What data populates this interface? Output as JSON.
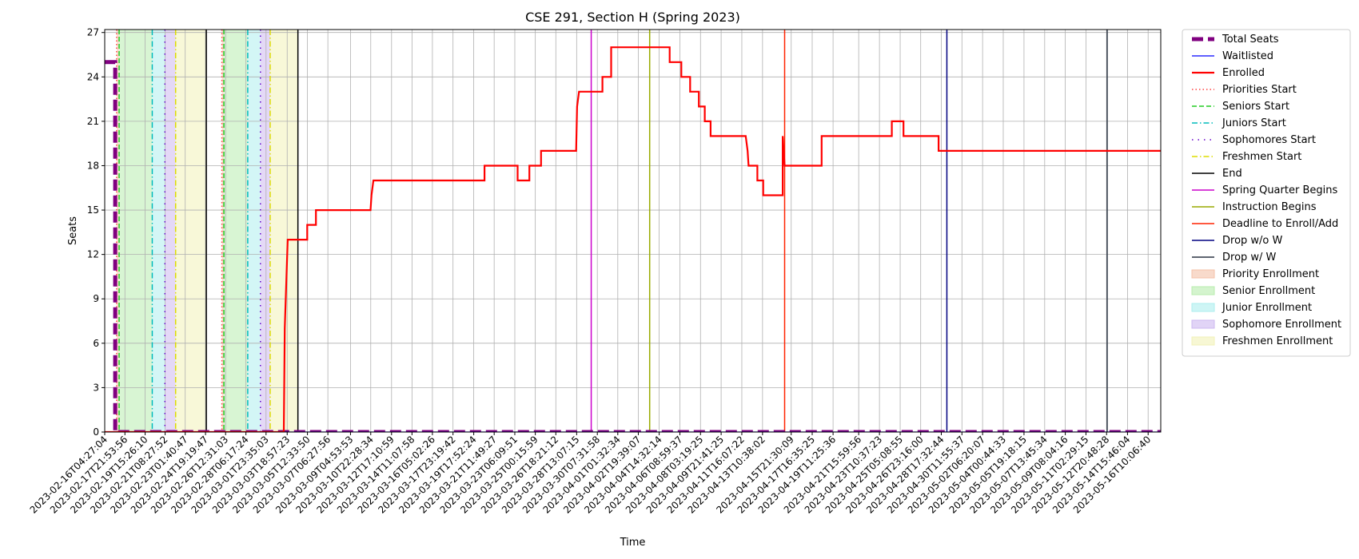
{
  "chart_data": {
    "type": "line",
    "title": "CSE 291, Section H (Spring 2023)",
    "xlabel": "Time",
    "ylabel": "Seats",
    "ylim": [
      0,
      27.2
    ],
    "yticks": [
      0,
      3,
      6,
      9,
      12,
      15,
      18,
      21,
      24,
      27
    ],
    "xlim": [
      "2023-02-16T04:27:04",
      "2023-05-17T12:00:00"
    ],
    "xticks": [
      "2023-02-16T04:27:04",
      "2023-02-17T21:53:56",
      "2023-02-19T15:26:10",
      "2023-02-21T08:27:52",
      "2023-02-23T01:40:47",
      "2023-02-24T19:19:47",
      "2023-02-26T12:31:03",
      "2023-02-28T06:17:24",
      "2023-03-01T23:35:03",
      "2023-03-03T18:57:23",
      "2023-03-05T12:33:50",
      "2023-03-07T06:27:56",
      "2023-03-09T04:53:53",
      "2023-03-10T22:28:34",
      "2023-03-12T17:10:59",
      "2023-03-14T11:07:58",
      "2023-03-16T05:02:26",
      "2023-03-17T23:19:42",
      "2023-03-19T17:52:24",
      "2023-03-21T11:49:27",
      "2023-03-23T06:09:51",
      "2023-03-25T00:15:59",
      "2023-03-26T18:21:12",
      "2023-03-28T13:07:15",
      "2023-03-30T07:31:58",
      "2023-04-01T01:32:34",
      "2023-04-02T19:39:07",
      "2023-04-04T14:32:14",
      "2023-04-06T08:59:37",
      "2023-04-08T03:19:25",
      "2023-04-09T21:41:25",
      "2023-04-11T16:07:22",
      "2023-04-13T10:38:02",
      "2023-04-15T21:30:09",
      "2023-04-17T16:35:25",
      "2023-04-19T11:25:36",
      "2023-04-21T15:59:56",
      "2023-04-23T10:37:23",
      "2023-04-25T05:08:55",
      "2023-04-26T23:16:00",
      "2023-04-28T17:32:44",
      "2023-04-30T11:55:37",
      "2023-05-02T06:20:07",
      "2023-05-04T00:44:33",
      "2023-05-05T19:18:15",
      "2023-05-07T13:45:34",
      "2023-05-09T08:04:16",
      "2023-05-11T02:29:15",
      "2023-05-12T20:48:28",
      "2023-05-14T15:46:04",
      "2023-05-16T10:06:40"
    ],
    "grid": true,
    "legend_position": "outside-right",
    "series": [
      {
        "name": "Total Seats",
        "style": "dashed",
        "color": "#800080",
        "points": [
          [
            "2023-02-16T04:27:04",
            25
          ],
          [
            "2023-02-17T02:00:00",
            25
          ],
          [
            "2023-02-17T02:00:00",
            0
          ],
          [
            "2023-05-17T12:00:00",
            0
          ]
        ]
      },
      {
        "name": "Waitlisted",
        "style": "solid",
        "color": "#0000ff",
        "points": [
          [
            "2023-02-16T04:27:04",
            0
          ],
          [
            "2023-05-17T12:00:00",
            0
          ]
        ]
      },
      {
        "name": "Enrolled",
        "style": "solid",
        "color": "#ff0000",
        "points": [
          [
            "2023-02-16T04:27:04",
            0
          ],
          [
            "2023-03-03T12:00:00",
            0
          ],
          [
            "2023-03-03T14:00:00",
            7
          ],
          [
            "2023-03-03T20:00:00",
            13
          ],
          [
            "2023-03-05T12:00:00",
            13
          ],
          [
            "2023-03-05T12:00:00",
            14
          ],
          [
            "2023-03-06T06:00:00",
            14
          ],
          [
            "2023-03-06T06:00:00",
            15
          ],
          [
            "2023-03-10T22:00:00",
            15
          ],
          [
            "2023-03-11T00:00:00",
            16
          ],
          [
            "2023-03-11T04:00:00",
            17
          ],
          [
            "2023-03-20T16:00:00",
            17
          ],
          [
            "2023-03-20T16:00:00",
            18
          ],
          [
            "2023-03-23T12:00:00",
            18
          ],
          [
            "2023-03-23T12:00:00",
            17
          ],
          [
            "2023-03-24T12:00:00",
            17
          ],
          [
            "2023-03-24T12:00:00",
            18
          ],
          [
            "2023-03-25T12:00:00",
            18
          ],
          [
            "2023-03-25T12:00:00",
            19
          ],
          [
            "2023-03-28T12:00:00",
            19
          ],
          [
            "2023-03-28T14:00:00",
            22
          ],
          [
            "2023-03-28T18:00:00",
            23
          ],
          [
            "2023-03-30T18:00:00",
            23
          ],
          [
            "2023-03-30T18:00:00",
            24
          ],
          [
            "2023-03-31T12:00:00",
            24
          ],
          [
            "2023-03-31T12:00:00",
            26
          ],
          [
            "2023-04-05T12:00:00",
            26
          ],
          [
            "2023-04-05T12:00:00",
            25
          ],
          [
            "2023-04-06T12:00:00",
            25
          ],
          [
            "2023-04-06T12:00:00",
            24
          ],
          [
            "2023-04-07T06:00:00",
            24
          ],
          [
            "2023-04-07T06:00:00",
            23
          ],
          [
            "2023-04-08T00:00:00",
            23
          ],
          [
            "2023-04-08T00:00:00",
            22
          ],
          [
            "2023-04-08T12:00:00",
            22
          ],
          [
            "2023-04-08T12:00:00",
            21
          ],
          [
            "2023-04-09T00:00:00",
            21
          ],
          [
            "2023-04-09T00:00:00",
            20
          ],
          [
            "2023-04-12T00:00:00",
            20
          ],
          [
            "2023-04-12T04:00:00",
            19
          ],
          [
            "2023-04-12T06:00:00",
            18
          ],
          [
            "2023-04-13T00:00:00",
            18
          ],
          [
            "2023-04-13T00:00:00",
            17
          ],
          [
            "2023-04-13T12:00:00",
            17
          ],
          [
            "2023-04-13T12:00:00",
            16
          ],
          [
            "2023-04-15T04:00:00",
            16
          ],
          [
            "2023-04-15T04:00:00",
            20
          ],
          [
            "2023-04-15T08:00:00",
            18
          ],
          [
            "2023-04-18T12:00:00",
            18
          ],
          [
            "2023-04-18T12:00:00",
            20
          ],
          [
            "2023-04-24T12:00:00",
            20
          ],
          [
            "2023-04-24T12:00:00",
            21
          ],
          [
            "2023-04-25T12:00:00",
            21
          ],
          [
            "2023-04-25T12:00:00",
            20
          ],
          [
            "2023-04-28T12:00:00",
            20
          ],
          [
            "2023-04-28T12:00:00",
            19
          ],
          [
            "2023-05-17T12:00:00",
            19
          ]
        ]
      }
    ],
    "vlines": [
      {
        "name": "Priorities Start",
        "style": "dotted",
        "color": "#ff4040",
        "x": [
          "2023-02-17T05:00:00",
          "2023-02-26T05:00:00"
        ]
      },
      {
        "name": "Seniors Start",
        "style": "dashed",
        "color": "#22cc22",
        "x": [
          "2023-02-17T10:00:00",
          "2023-02-26T09:00:00"
        ]
      },
      {
        "name": "Juniors Start",
        "style": "dashdot",
        "color": "#00bbbb",
        "x": [
          "2023-02-20T06:00:00",
          "2023-02-28T10:00:00"
        ]
      },
      {
        "name": "Sophomores Start",
        "style": "dotted-sparse",
        "color": "#6600cc",
        "x": [
          "2023-02-21T08:00:00",
          "2023-03-01T12:00:00"
        ]
      },
      {
        "name": "Freshmen Start",
        "style": "dashdot",
        "color": "#dddd00",
        "x": [
          "2023-02-22T06:00:00",
          "2023-03-02T08:00:00"
        ]
      },
      {
        "name": "End",
        "style": "solid",
        "color": "#000000",
        "x": [
          "2023-02-24T21:00:00",
          "2023-03-04T17:00:00"
        ]
      },
      {
        "name": "Spring Quarter Begins",
        "style": "solid",
        "color": "#cc00cc",
        "x": [
          "2023-03-29T19:00:00"
        ]
      },
      {
        "name": "Instruction Begins",
        "style": "solid",
        "color": "#99aa00",
        "x": [
          "2023-04-03T19:00:00"
        ]
      },
      {
        "name": "Deadline to Enroll/Add",
        "style": "solid",
        "color": "#ff2200",
        "x": [
          "2023-04-15T08:00:00"
        ]
      },
      {
        "name": "Drop w/o W",
        "style": "solid",
        "color": "#000080",
        "x": [
          "2023-04-29T05:00:00"
        ]
      },
      {
        "name": "Drop w/ W",
        "style": "solid",
        "color": "#2a3342",
        "x": [
          "2023-05-12T22:00:00"
        ]
      }
    ],
    "spans": [
      {
        "name": "Priority Enrollment",
        "color": "#f4c2a8",
        "ranges": [
          [
            "2023-02-17T05:00:00",
            "2023-02-17T10:00:00"
          ],
          [
            "2023-02-26T05:00:00",
            "2023-02-26T09:00:00"
          ]
        ]
      },
      {
        "name": "Senior Enrollment",
        "color": "#b8ecae",
        "ranges": [
          [
            "2023-02-17T10:00:00",
            "2023-02-20T06:00:00"
          ],
          [
            "2023-02-26T09:00:00",
            "2023-02-28T10:00:00"
          ]
        ]
      },
      {
        "name": "Junior Enrollment",
        "color": "#aeeeee",
        "ranges": [
          [
            "2023-02-20T06:00:00",
            "2023-02-21T08:00:00"
          ],
          [
            "2023-02-28T10:00:00",
            "2023-03-01T12:00:00"
          ]
        ]
      },
      {
        "name": "Sophomore Enrollment",
        "color": "#cdb8f0",
        "ranges": [
          [
            "2023-02-21T08:00:00",
            "2023-02-22T06:00:00"
          ],
          [
            "2023-03-01T12:00:00",
            "2023-03-02T08:00:00"
          ]
        ]
      },
      {
        "name": "Freshmen Enrollment",
        "color": "#f2f2b8",
        "ranges": [
          [
            "2023-02-22T06:00:00",
            "2023-02-24T21:00:00"
          ],
          [
            "2023-03-02T08:00:00",
            "2023-03-04T17:00:00"
          ]
        ]
      }
    ],
    "legend": [
      "Total Seats",
      "Waitlisted",
      "Enrolled",
      "Priorities Start",
      "Seniors Start",
      "Juniors Start",
      "Sophomores Start",
      "Freshmen Start",
      "End",
      "Spring Quarter Begins",
      "Instruction Begins",
      "Deadline to Enroll/Add",
      "Drop w/o W",
      "Drop w/ W",
      "Priority Enrollment",
      "Senior Enrollment",
      "Junior Enrollment",
      "Sophomore Enrollment",
      "Freshmen Enrollment"
    ]
  }
}
